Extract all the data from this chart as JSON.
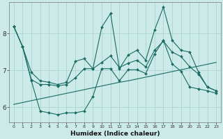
{
  "xlabel": "Humidex (Indice chaleur)",
  "bg_color": "#cceae8",
  "line_color": "#1a6b62",
  "grid_color": "#aad4d0",
  "x": [
    0,
    1,
    2,
    3,
    4,
    5,
    6,
    7,
    8,
    9,
    10,
    11,
    12,
    13,
    14,
    15,
    16,
    17,
    18,
    19,
    20,
    21,
    22,
    23
  ],
  "y_line1": [
    8.2,
    7.65,
    6.95,
    6.72,
    6.68,
    6.62,
    6.68,
    7.25,
    7.32,
    7.05,
    8.18,
    8.55,
    7.05,
    7.42,
    7.55,
    7.28,
    8.1,
    8.72,
    7.82,
    7.55,
    7.5,
    6.95,
    6.55,
    6.45
  ],
  "y_line2": [
    8.2,
    7.65,
    6.75,
    6.62,
    6.62,
    6.58,
    6.62,
    6.8,
    7.05,
    7.05,
    7.22,
    7.4,
    7.08,
    7.2,
    7.28,
    7.1,
    7.55,
    7.8,
    7.5,
    7.38,
    7.1,
    6.9,
    6.55,
    6.45
  ],
  "y_line3": [
    8.2,
    7.65,
    6.72,
    5.9,
    5.85,
    5.8,
    5.85,
    5.85,
    5.9,
    6.3,
    7.05,
    7.05,
    6.72,
    7.02,
    7.02,
    6.92,
    7.45,
    7.82,
    7.18,
    6.98,
    6.55,
    6.5,
    6.45,
    6.38
  ],
  "y_trend_low": [
    6.08,
    6.13,
    6.18,
    6.23,
    6.28,
    6.33,
    6.38,
    6.43,
    6.48,
    6.53,
    6.58,
    6.63,
    6.68,
    6.72,
    6.77,
    6.82,
    6.87,
    6.92,
    6.97,
    7.02,
    7.07,
    7.12,
    7.17,
    7.22
  ],
  "ylim": [
    5.6,
    8.85
  ],
  "yticks": [
    6,
    7,
    8
  ],
  "xlim": [
    -0.5,
    23.5
  ],
  "figsize": [
    3.2,
    2.0
  ],
  "dpi": 100
}
